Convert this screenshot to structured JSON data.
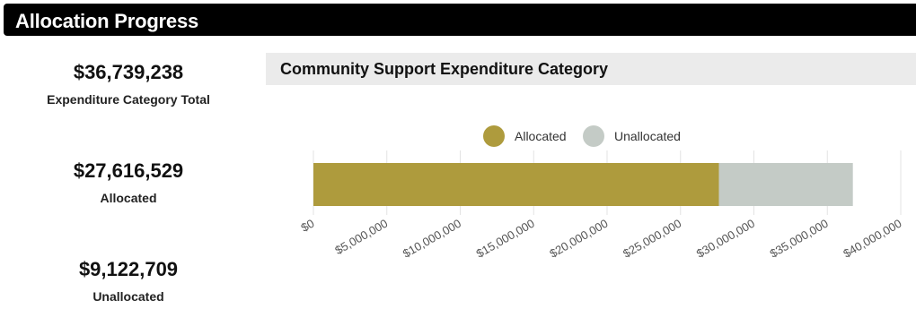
{
  "header": {
    "title": "Allocation Progress"
  },
  "stats": {
    "total": {
      "value": "$36,739,238",
      "label": "Expenditure Category Total"
    },
    "allocated": {
      "value": "$27,616,529",
      "label": "Allocated"
    },
    "unallocated": {
      "value": "$9,122,709",
      "label": "Unallocated"
    }
  },
  "colors": {
    "allocated": "#ae9b3d",
    "unallocated": "#c4cbc6",
    "header_bg": "#000000",
    "title_bar_bg": "#ebebeb"
  },
  "chart_data": {
    "type": "bar",
    "orientation": "horizontal",
    "stacked": true,
    "title": "Community Support Expenditure Category",
    "categories": [
      ""
    ],
    "series": [
      {
        "name": "Allocated",
        "values": [
          27616529
        ],
        "color": "#ae9b3d"
      },
      {
        "name": "Unallocated",
        "values": [
          9122709
        ],
        "color": "#c4cbc6"
      }
    ],
    "xlim": [
      0,
      40000000
    ],
    "ticks": [
      0,
      5000000,
      10000000,
      15000000,
      20000000,
      25000000,
      30000000,
      35000000,
      40000000
    ],
    "tick_labels": [
      "$0",
      "$5,000,000",
      "$10,000,000",
      "$15,000,000",
      "$20,000,000",
      "$25,000,000",
      "$30,000,000",
      "$35,000,000",
      "$40,000,000"
    ],
    "grid": true,
    "legend": "top-center"
  }
}
